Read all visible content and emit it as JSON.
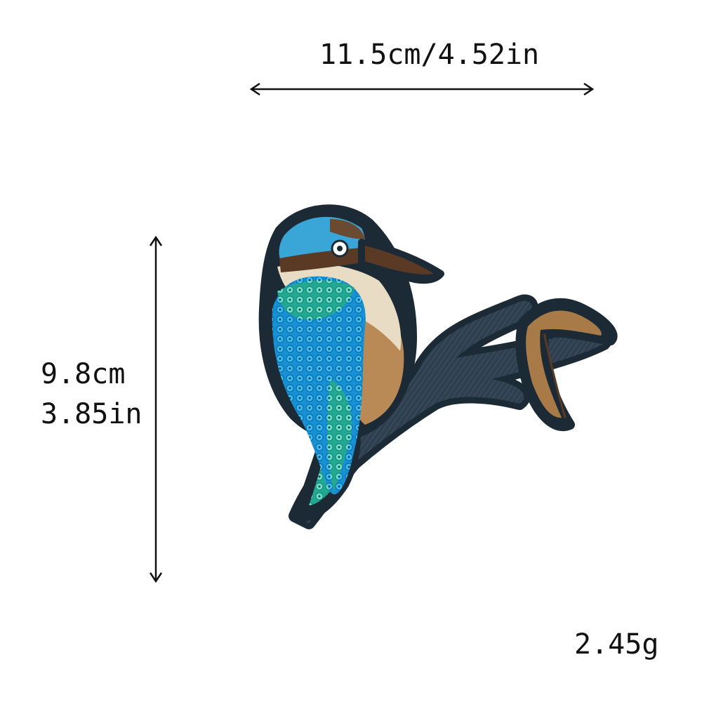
{
  "dimensions": {
    "width_label": "11.5cm/4.52in",
    "height_cm": "9.8cm",
    "height_in": "3.85in"
  },
  "weight_label": "2.45g",
  "product": {
    "icon": "kingfisher-sequin-patch-icon",
    "colors": {
      "outline": "#1c2a36",
      "branch": "#2c3c4c",
      "head_blue": "#3aa6d8",
      "sequin_blue": "#1aa0e0",
      "sequin_teal": "#2fc8b8",
      "chest_cream": "#e8dcc4",
      "belly_tan": "#b98a55",
      "beak_brown": "#5a3a24",
      "leaf_tan": "#a87a48"
    }
  }
}
